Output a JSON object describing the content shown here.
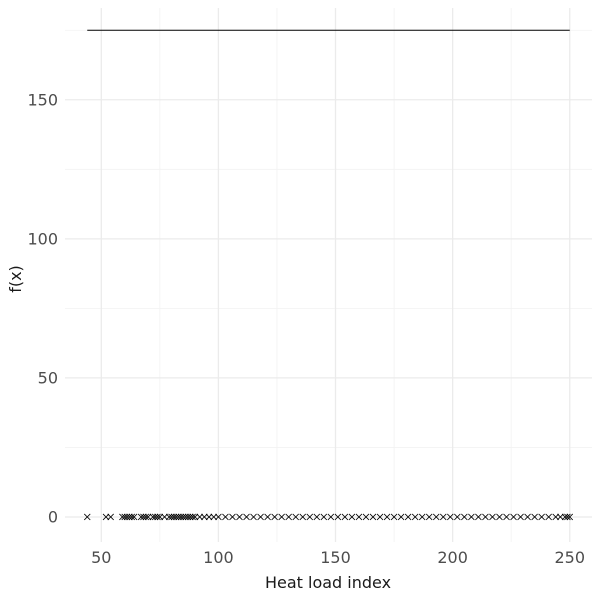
{
  "chart_data": {
    "type": "scatter",
    "title": "",
    "xlabel": "Heat load index",
    "ylabel": "f(x)",
    "xlim": [
      34.5,
      259.5
    ],
    "ylim": [
      -9,
      183
    ],
    "x_ticks": [
      50,
      100,
      150,
      200,
      250
    ],
    "y_ticks": [
      0,
      50,
      100,
      150
    ],
    "x_minor": [
      75,
      125,
      175,
      225
    ],
    "y_minor": [
      25,
      75,
      125,
      175
    ],
    "grid": true,
    "marker": "x",
    "marker_color": "#000000",
    "reference_line": {
      "y": 175,
      "x_start": 44,
      "x_end": 250
    },
    "series": [
      {
        "x": [
          44,
          52,
          54,
          59,
          60,
          61,
          62,
          63,
          64,
          67,
          68,
          69,
          70,
          72,
          73,
          74,
          75,
          77,
          79,
          80,
          81,
          82,
          83,
          84,
          85,
          86,
          87,
          88,
          89,
          90,
          92,
          94,
          96,
          98,
          100,
          103,
          106,
          109,
          112,
          115,
          118,
          121,
          124,
          127,
          130,
          133,
          136,
          139,
          142,
          145,
          148,
          151,
          154,
          157,
          160,
          163,
          166,
          169,
          172,
          175,
          178,
          181,
          184,
          187,
          190,
          193,
          196,
          199,
          202,
          205,
          208,
          211,
          214,
          217,
          220,
          223,
          226,
          229,
          232,
          235,
          238,
          241,
          244,
          246,
          248,
          249,
          250
        ],
        "y": [
          0,
          0,
          0,
          0,
          0,
          0,
          0,
          0,
          0,
          0,
          0,
          0,
          0,
          0,
          0,
          0,
          0,
          0,
          0,
          0,
          0,
          0,
          0,
          0,
          0,
          0,
          0,
          0,
          0,
          0,
          0,
          0,
          0,
          0,
          0,
          0,
          0,
          0,
          0,
          0,
          0,
          0,
          0,
          0,
          0,
          0,
          0,
          0,
          0,
          0,
          0,
          0,
          0,
          0,
          0,
          0,
          0,
          0,
          0,
          0,
          0,
          0,
          0,
          0,
          0,
          0,
          0,
          0,
          0,
          0,
          0,
          0,
          0,
          0,
          0,
          0,
          0,
          0,
          0,
          0,
          0,
          0,
          0,
          0,
          0,
          0,
          0
        ]
      }
    ]
  }
}
